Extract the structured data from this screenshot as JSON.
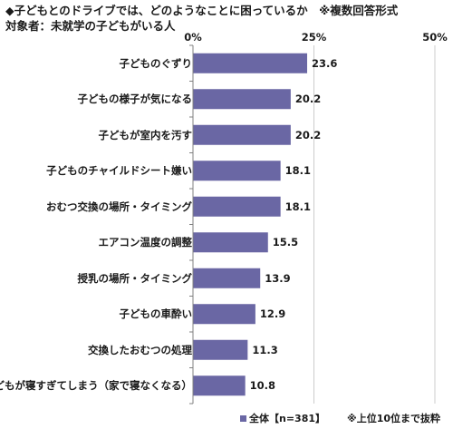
{
  "chart_data": {
    "type": "bar",
    "orientation": "horizontal",
    "title": "◆子どもとのドライブでは、どのようなことに困っているか　※複数回答形式",
    "subtitle": "対象者：未就学の子どもがいる人",
    "categories": [
      "子どものぐずり",
      "子どもの様子が気になる",
      "子どもが室内を汚す",
      "子どものチャイルドシート嫌い",
      "おむつ交換の場所・タイミング",
      "エアコン温度の調整",
      "授乳の場所・タイミング",
      "子どもの車酔い",
      "交換したおむつの処理",
      "子どもが寝すぎてしまう（家で寝なくなる）"
    ],
    "series": [
      {
        "name": "全体【n=381】",
        "values": [
          23.6,
          20.2,
          20.2,
          18.1,
          18.1,
          15.5,
          13.9,
          12.9,
          11.3,
          10.8
        ]
      }
    ],
    "value_labels": [
      "23.6",
      "20.2",
      "20.2",
      "18.1",
      "18.1",
      "15.5",
      "13.9",
      "12.9",
      "11.3",
      "10.8"
    ],
    "xlim": [
      0,
      50
    ],
    "ticks": [
      0,
      25,
      50
    ],
    "tick_labels": [
      "0%",
      "25%",
      "50%"
    ],
    "grid": true,
    "legend_position": "bottom",
    "note": "※上位10位まで抜粋",
    "colors": {
      "bar": "#6a67a4",
      "axis": "#808080",
      "grid": "#cccccc"
    }
  }
}
